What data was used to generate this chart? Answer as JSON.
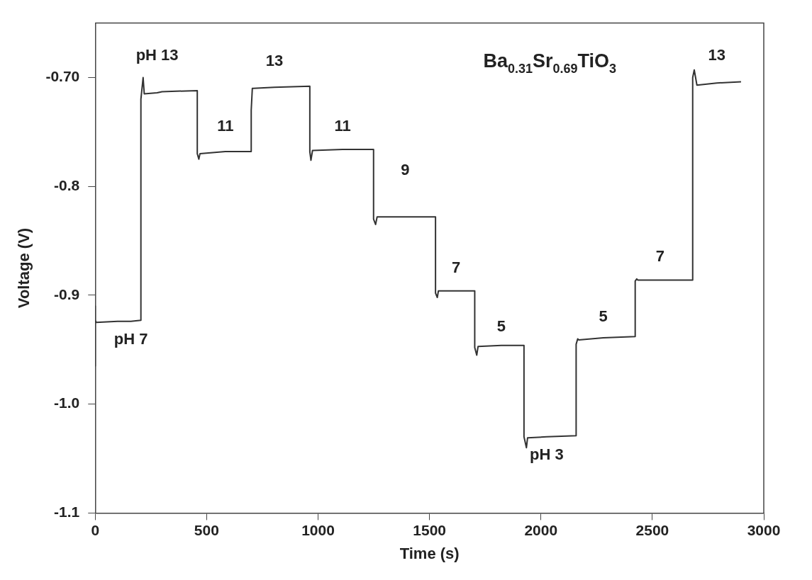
{
  "chart_data": {
    "type": "line",
    "title": "Ba$_{0.31}$Sr$_{0.69}$TiO$_{3}$",
    "xlabel": "Time (s)",
    "ylabel": "Voltage (V)",
    "xlim": [
      0,
      3000
    ],
    "xticks": [
      0,
      500,
      1000,
      1500,
      2000,
      2500,
      3000
    ],
    "ylim": [
      -1.1,
      -0.65
    ],
    "yticks": [
      {
        "value": -0.7,
        "label": "-0.70"
      },
      -0.8,
      -0.9,
      {
        "value": -1.0,
        "label": "-1.0"
      },
      -1.1
    ],
    "series": [
      {
        "color": "#333333",
        "x": [
          0,
          0,
          0,
          5,
          100,
          160,
          205,
          205,
          215,
          220,
          278,
          300,
          458,
          458,
          465,
          470,
          584,
          700,
          700,
          705,
          710,
          804,
          963,
          963,
          968,
          975,
          1110,
          1249,
          1249,
          1258,
          1265,
          1391,
          1527,
          1527,
          1535,
          1540,
          1619,
          1703,
          1703,
          1712,
          1718,
          1822,
          1924,
          1924,
          1935,
          1940,
          2026,
          2158,
          2158,
          2165,
          2170,
          2280,
          2423,
          2423,
          2430,
          2435,
          2535,
          2681,
          2681,
          2688,
          2700,
          2789,
          2898
        ],
        "values": [
          -0.91,
          -0.965,
          -0.923,
          -0.925,
          -0.924,
          -0.924,
          -0.923,
          -0.72,
          -0.7,
          -0.715,
          -0.714,
          -0.713,
          -0.712,
          -0.77,
          -0.775,
          -0.77,
          -0.768,
          -0.768,
          -0.73,
          -0.71,
          -0.71,
          -0.709,
          -0.708,
          -0.768,
          -0.776,
          -0.767,
          -0.766,
          -0.766,
          -0.83,
          -0.835,
          -0.828,
          -0.828,
          -0.828,
          -0.898,
          -0.902,
          -0.896,
          -0.896,
          -0.896,
          -0.948,
          -0.955,
          -0.947,
          -0.946,
          -0.946,
          -1.03,
          -1.04,
          -1.031,
          -1.03,
          -1.029,
          -0.945,
          -0.94,
          -0.941,
          -0.939,
          -0.938,
          -0.887,
          -0.885,
          -0.886,
          -0.886,
          -0.886,
          -0.7,
          -0.693,
          -0.707,
          -0.705,
          -0.704
        ]
      }
    ],
    "annotations": [
      {
        "text": "pH 7",
        "x": 160,
        "y": -0.924
      },
      {
        "text": "pH 13",
        "x": 278,
        "y": -0.714
      },
      {
        "text": "11",
        "x": 584,
        "y": -0.768
      },
      {
        "text": "13",
        "x": 804,
        "y": -0.709
      },
      {
        "text": "11",
        "x": 1110,
        "y": -0.766
      },
      {
        "text": "9",
        "x": 1391,
        "y": -0.828
      },
      {
        "text": "7",
        "x": 1619,
        "y": -0.896
      },
      {
        "text": "5",
        "x": 1822,
        "y": -0.946
      },
      {
        "text": "pH 3",
        "x": 2026,
        "y": -1.03
      },
      {
        "text": "5",
        "x": 2280,
        "y": -0.939
      },
      {
        "text": "7",
        "x": 2535,
        "y": -0.886
      },
      {
        "text": "13",
        "x": 2789,
        "y": -0.705
      }
    ],
    "marker": "none",
    "line_style": "solid",
    "legend": false
  }
}
